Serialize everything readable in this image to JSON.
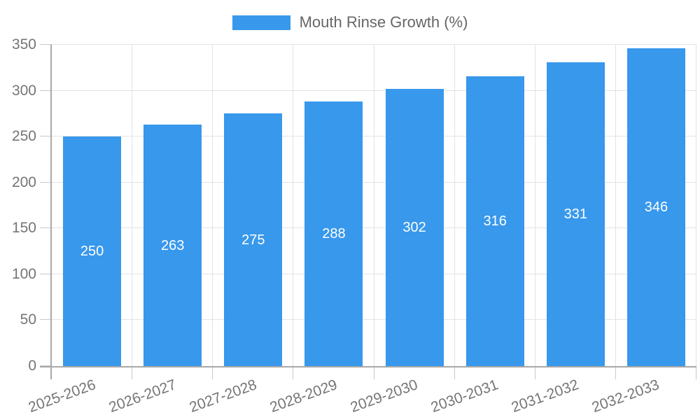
{
  "chart_data": {
    "type": "bar",
    "title": "",
    "series_name": "Mouth Rinse Growth (%)",
    "categories": [
      "2025-2026",
      "2026-2027",
      "2027-2028",
      "2028-2029",
      "2029-2030",
      "2030-2031",
      "2031-2032",
      "2032-2033"
    ],
    "series": [
      {
        "name": "Mouth Rinse Growth (%)",
        "values": [
          250,
          263,
          275,
          288,
          302,
          316,
          331,
          346
        ]
      }
    ],
    "values": [
      250,
      263,
      275,
      288,
      302,
      316,
      331,
      346
    ],
    "value_labels_shown": true,
    "xlabel": "",
    "ylabel": "",
    "ylim": [
      0,
      350
    ],
    "ytick_step": 50,
    "yticks": [
      0,
      50,
      100,
      150,
      200,
      250,
      300,
      350
    ],
    "grid": "on",
    "legend_position": "top",
    "x_label_rotation_deg": -20,
    "colors": {
      "bar": "#3898EC",
      "grid": "#E3E3E3",
      "tick": "#C8C8C8",
      "axis": "#A8A8A8",
      "tick_label": "#757575",
      "legend_label": "#666666",
      "value_label": "#FFFFFF",
      "background": "#FFFFFF"
    }
  }
}
